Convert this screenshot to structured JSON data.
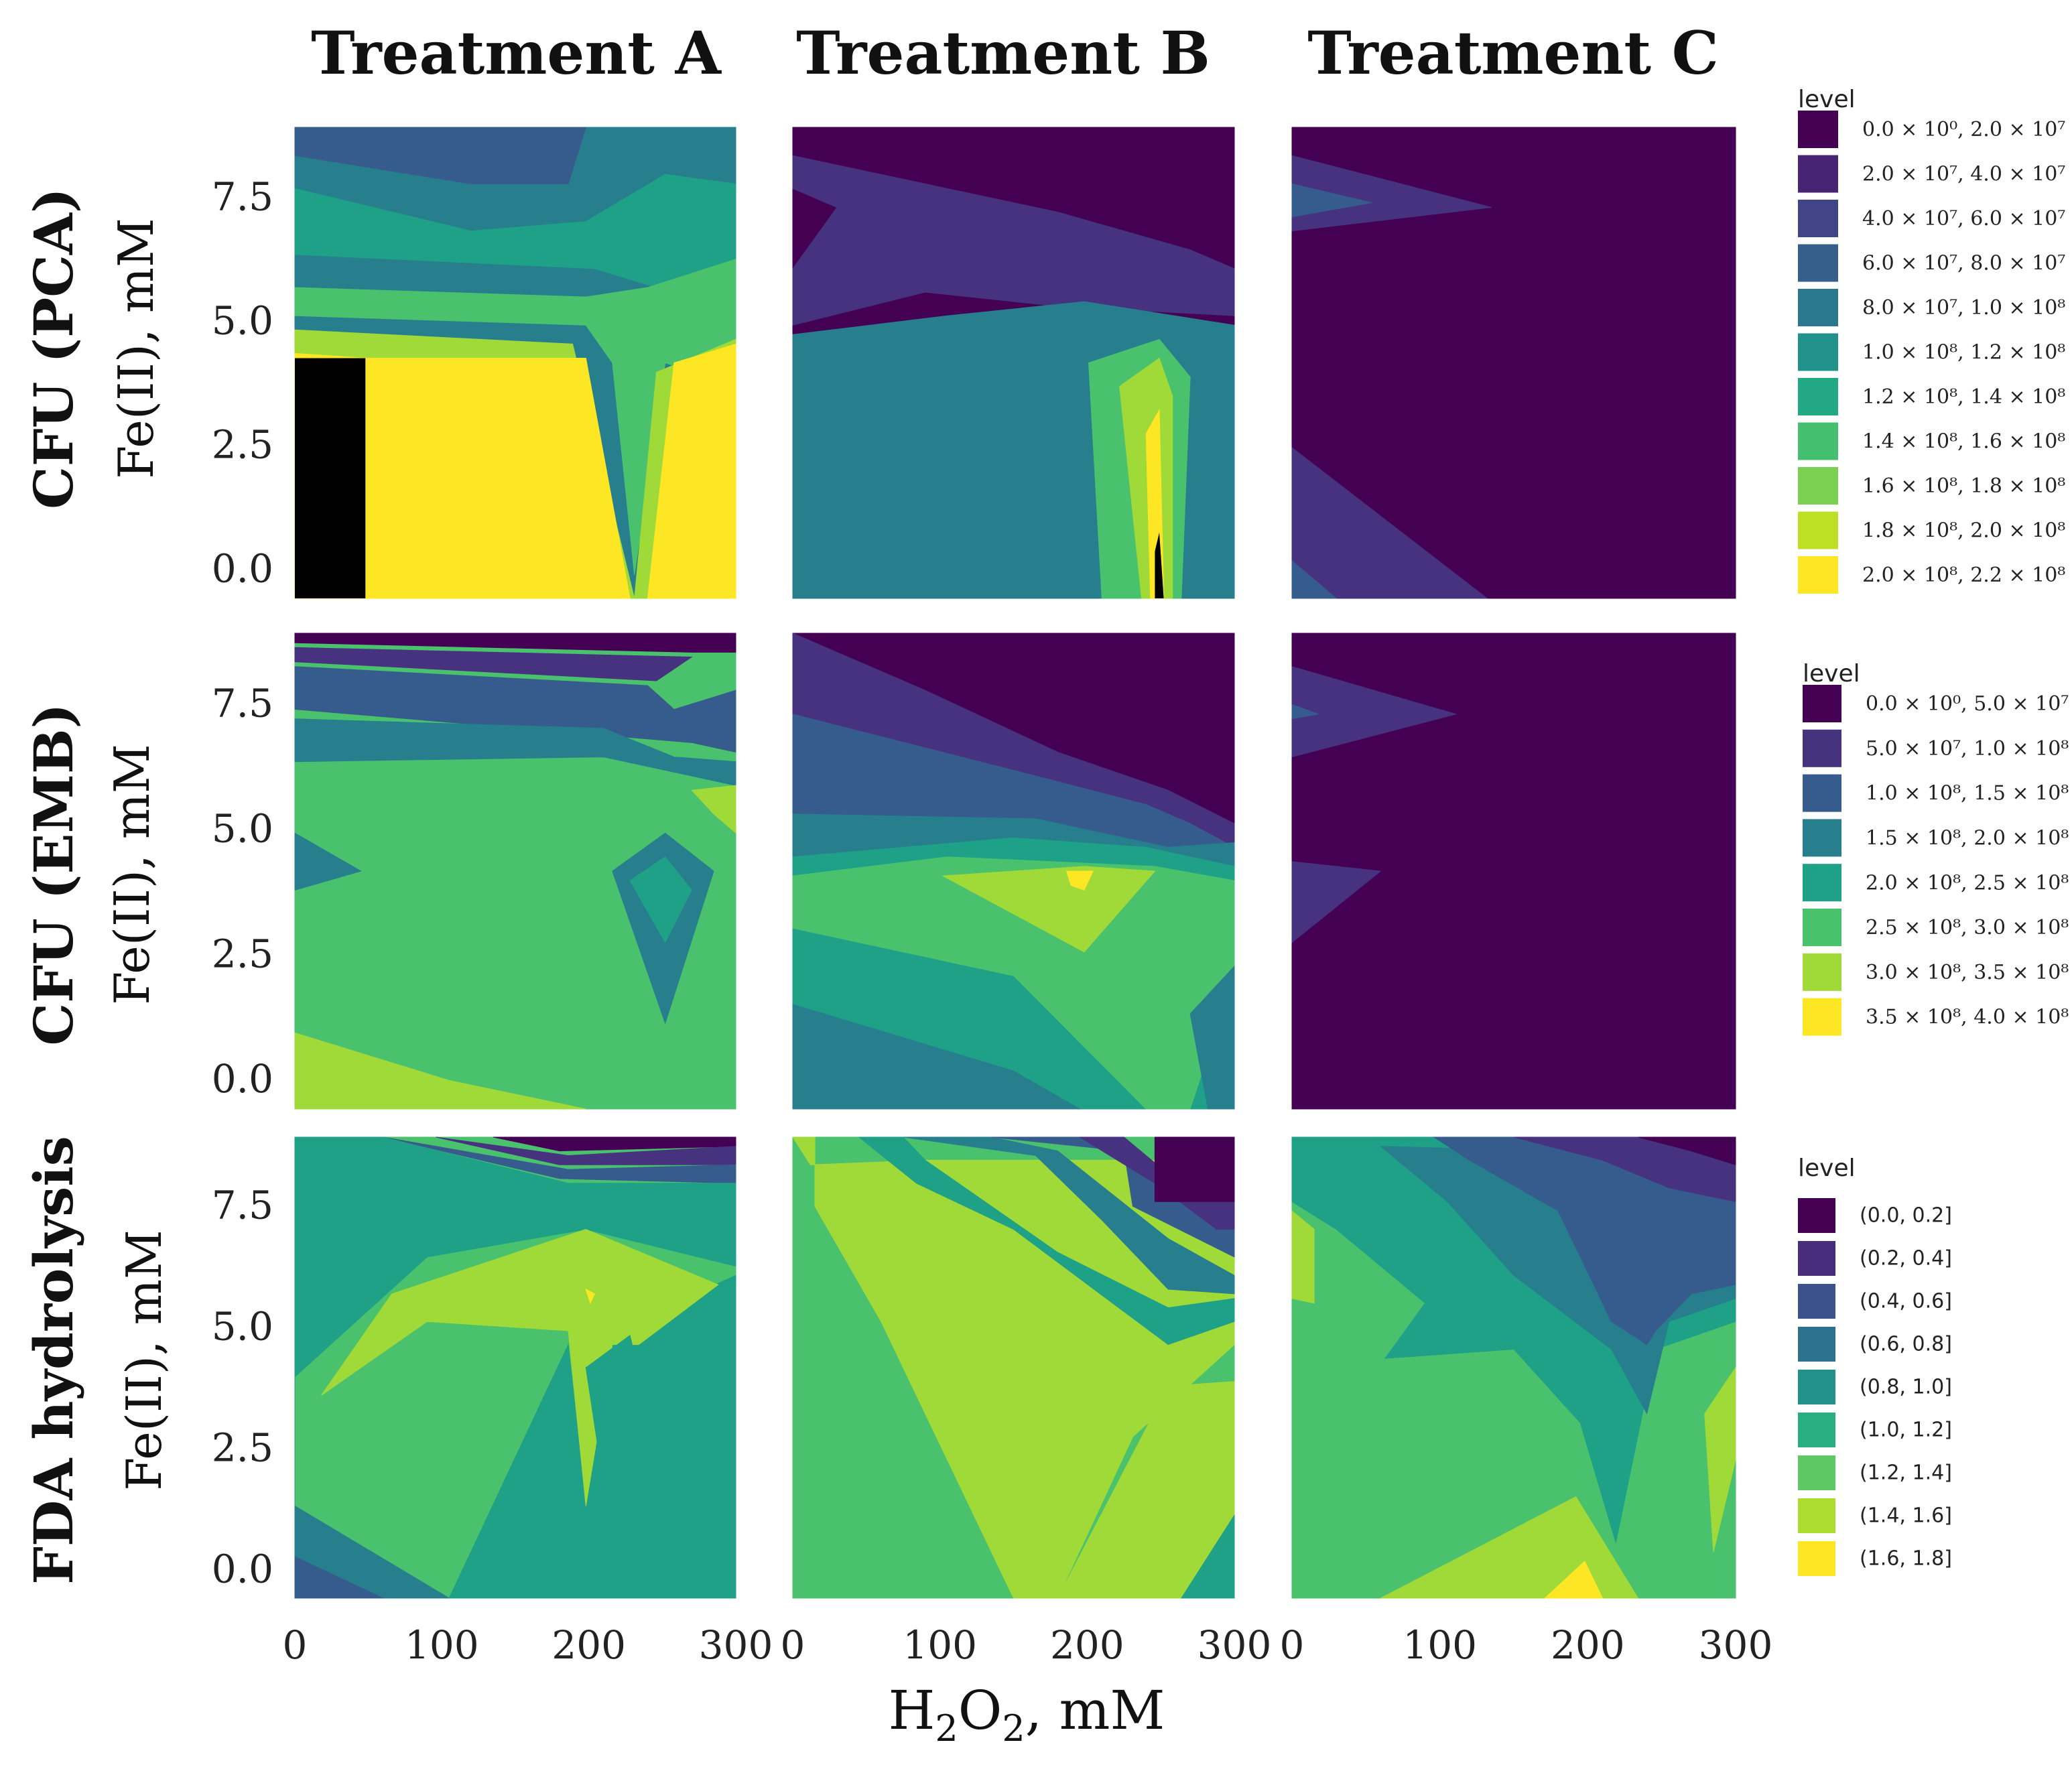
{
  "chart_data": {
    "type": "heatmap",
    "subtype": "filled-contour",
    "column_titles": [
      "Treatment A",
      "Treatment B",
      "Treatment C"
    ],
    "row_titles": [
      "CFU (PCA)",
      "CFU (EMB)",
      "FDA hydrolysis"
    ],
    "ylabel": "Fe(II), mM",
    "xlabel": {
      "base": "H",
      "sub1": "2",
      "mid": "O",
      "sub2": "2",
      "tail": ", mM"
    },
    "x_ticks": [
      "0",
      "100",
      "200",
      "300"
    ],
    "y_ticks": [
      "0.0",
      "2.5",
      "5.0",
      "7.5"
    ],
    "xlim": [
      0,
      300
    ],
    "ylim": [
      -0.6,
      8.9
    ],
    "viridis": [
      "#440154",
      "#46327e",
      "#365c8d",
      "#277f8e",
      "#1fa187",
      "#4ac16d",
      "#a0da39",
      "#fde725"
    ],
    "legends": [
      {
        "title": "level",
        "items": [
          {
            "label": "0.0 × 10⁰, 2.0 × 10⁷",
            "color": "#440154"
          },
          {
            "label": "2.0 × 10⁷, 4.0 × 10⁷",
            "color": "#482475"
          },
          {
            "label": "4.0 × 10⁷, 6.0 × 10⁷",
            "color": "#414487"
          },
          {
            "label": "6.0 × 10⁷, 8.0 × 10⁷",
            "color": "#355f8d"
          },
          {
            "label": "8.0 × 10⁷, 1.0 × 10⁸",
            "color": "#2a788e"
          },
          {
            "label": "1.0 × 10⁸, 1.2 × 10⁸",
            "color": "#21918c"
          },
          {
            "label": "1.2 × 10⁸, 1.4 × 10⁸",
            "color": "#22a884"
          },
          {
            "label": "1.4 × 10⁸, 1.6 × 10⁸",
            "color": "#44bf70"
          },
          {
            "label": "1.6 × 10⁸, 1.8 × 10⁸",
            "color": "#7ad151"
          },
          {
            "label": "1.8 × 10⁸, 2.0 × 10⁸",
            "color": "#bddf26"
          },
          {
            "label": "2.0 × 10⁸, 2.2 × 10⁸",
            "color": "#fde725"
          }
        ]
      },
      {
        "title": "level",
        "items": [
          {
            "label": "0.0 × 10⁰, 5.0 × 10⁷",
            "color": "#440154"
          },
          {
            "label": "5.0 × 10⁷, 1.0 × 10⁸",
            "color": "#46337e"
          },
          {
            "label": "1.0 × 10⁸, 1.5 × 10⁸",
            "color": "#365c8d"
          },
          {
            "label": "1.5 × 10⁸, 2.0 × 10⁸",
            "color": "#277f8e"
          },
          {
            "label": "2.0 × 10⁸, 2.5 × 10⁸",
            "color": "#1fa187"
          },
          {
            "label": "2.5 × 10⁸, 3.0 × 10⁸",
            "color": "#4ac16d"
          },
          {
            "label": "3.0 × 10⁸, 3.5 × 10⁸",
            "color": "#a0da39"
          },
          {
            "label": "3.5 × 10⁸, 4.0 × 10⁸",
            "color": "#fde725"
          }
        ]
      },
      {
        "title": "level",
        "items": [
          {
            "label": "(0.0, 0.2]",
            "color": "#440154"
          },
          {
            "label": "(0.2, 0.4]",
            "color": "#472d7b"
          },
          {
            "label": "(0.4, 0.6]",
            "color": "#3b528b"
          },
          {
            "label": "(0.6, 0.8]",
            "color": "#2c728e"
          },
          {
            "label": "(0.8, 1.0]",
            "color": "#21918c"
          },
          {
            "label": "(1.0, 1.2]",
            "color": "#28ae80"
          },
          {
            "label": "(1.2, 1.4]",
            "color": "#5ec962"
          },
          {
            "label": "(1.4, 1.6]",
            "color": "#addc30"
          },
          {
            "label": "(1.6, 1.8]",
            "color": "#fde725"
          }
        ]
      }
    ]
  }
}
